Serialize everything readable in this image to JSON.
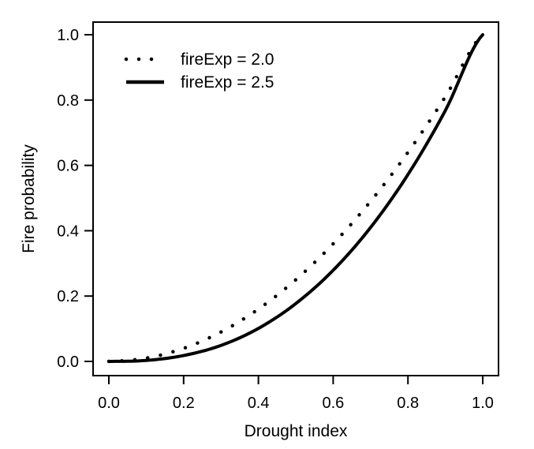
{
  "chart_data": {
    "type": "line",
    "title": "",
    "xlabel": "Drought index",
    "ylabel": "Fire probability",
    "xlim": [
      0.0,
      1.0
    ],
    "ylim": [
      0.0,
      1.0
    ],
    "xticks": [
      "0.0",
      "0.2",
      "0.4",
      "0.6",
      "0.8",
      "1.0"
    ],
    "yticks": [
      "0.0",
      "0.2",
      "0.4",
      "0.6",
      "0.8",
      "1.0"
    ],
    "grid": false,
    "legend_position": "top-left",
    "series": [
      {
        "name": "fireExp = 2.0",
        "style": "dotted",
        "color": "#000000",
        "x": [
          0.0,
          0.1,
          0.2,
          0.3,
          0.4,
          0.5,
          0.6,
          0.7,
          0.8,
          0.9,
          1.0
        ],
        "y": [
          0.0,
          0.01,
          0.04,
          0.09,
          0.16,
          0.25,
          0.36,
          0.49,
          0.64,
          0.81,
          1.0
        ]
      },
      {
        "name": "fireExp = 2.5",
        "style": "solid",
        "color": "#000000",
        "x": [
          0.0,
          0.1,
          0.2,
          0.3,
          0.4,
          0.5,
          0.6,
          0.7,
          0.8,
          0.9,
          1.0
        ],
        "y": [
          0.0,
          0.003,
          0.018,
          0.049,
          0.101,
          0.177,
          0.279,
          0.41,
          0.572,
          0.768,
          1.0
        ]
      }
    ]
  }
}
